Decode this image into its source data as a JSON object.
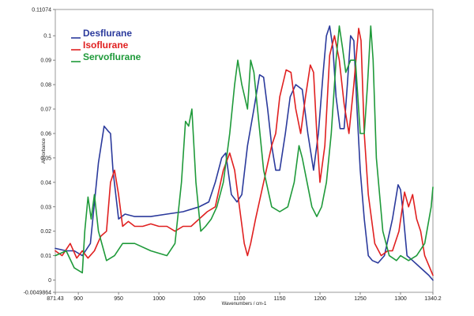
{
  "chart_data": {
    "type": "line",
    "title": "",
    "xlabel": "Wavenumbers / cm-1",
    "ylabel": "Absorbance",
    "xlim": [
      871.43,
      1340.2
    ],
    "ylim": [
      -0.0049864,
      0.11074
    ],
    "x_tick_values": [
      871.43,
      900,
      950,
      1000,
      1050,
      1100,
      1150,
      1200,
      1250,
      1300,
      1340.2
    ],
    "x_tick_labels": [
      "871.43",
      "900",
      "950",
      "1000",
      "1050",
      "1100",
      "1150",
      "1200",
      "1250",
      "1300",
      "1340.2"
    ],
    "y_tick_values": [
      -0.0049864,
      0,
      0.01,
      0.02,
      0.03,
      0.04,
      0.05,
      0.06,
      0.07,
      0.08,
      0.09,
      0.1,
      0.11074
    ],
    "y_tick_labels": [
      "-0.0049864",
      "0",
      "0.01",
      "0.02",
      "0.03",
      "0.04",
      "0.05",
      "0.06",
      "0.07",
      "0.08",
      "0.09",
      "0.1",
      "0.11074"
    ],
    "legend_position": "top-left",
    "series": [
      {
        "name": "Desflurane",
        "color": "#2b3a9c",
        "x": [
          871.43,
          885,
          895,
          905,
          915,
          925,
          932,
          937,
          940,
          943,
          950,
          958,
          970,
          990,
          1010,
          1030,
          1050,
          1062,
          1070,
          1078,
          1083,
          1090,
          1097,
          1103,
          1110,
          1118,
          1125,
          1130,
          1135,
          1140,
          1145,
          1150,
          1157,
          1163,
          1170,
          1178,
          1185,
          1192,
          1198,
          1204,
          1208,
          1212,
          1216,
          1220,
          1225,
          1230,
          1234,
          1238,
          1242,
          1246,
          1250,
          1255,
          1260,
          1265,
          1272,
          1280,
          1290,
          1297,
          1300,
          1303,
          1308,
          1315,
          1325,
          1335,
          1340.2
        ],
        "values": [
          0.013,
          0.012,
          0.012,
          0.01,
          0.015,
          0.048,
          0.063,
          0.061,
          0.06,
          0.045,
          0.025,
          0.027,
          0.026,
          0.026,
          0.027,
          0.028,
          0.03,
          0.032,
          0.04,
          0.05,
          0.052,
          0.035,
          0.032,
          0.035,
          0.055,
          0.07,
          0.084,
          0.083,
          0.07,
          0.055,
          0.045,
          0.045,
          0.06,
          0.075,
          0.08,
          0.078,
          0.06,
          0.045,
          0.06,
          0.085,
          0.1,
          0.104,
          0.095,
          0.075,
          0.062,
          0.062,
          0.08,
          0.1,
          0.098,
          0.07,
          0.045,
          0.025,
          0.01,
          0.008,
          0.007,
          0.01,
          0.025,
          0.039,
          0.037,
          0.028,
          0.01,
          0.008,
          0.005,
          0.002,
          0.0
        ]
      },
      {
        "name": "Isoflurane",
        "color": "#e02020",
        "x": [
          871.43,
          880,
          890,
          898,
          905,
          912,
          920,
          928,
          935,
          940,
          945,
          950,
          955,
          962,
          970,
          980,
          990,
          1000,
          1010,
          1020,
          1030,
          1040,
          1050,
          1060,
          1070,
          1080,
          1088,
          1094,
          1100,
          1106,
          1110,
          1114,
          1120,
          1130,
          1140,
          1145,
          1150,
          1158,
          1164,
          1170,
          1176,
          1182,
          1188,
          1192,
          1196,
          1200,
          1206,
          1212,
          1218,
          1224,
          1230,
          1236,
          1242,
          1248,
          1251,
          1255,
          1260,
          1268,
          1276,
          1284,
          1290,
          1298,
          1305,
          1310,
          1315,
          1320,
          1325,
          1330,
          1340.2
        ],
        "values": [
          0.012,
          0.01,
          0.015,
          0.009,
          0.012,
          0.009,
          0.012,
          0.018,
          0.02,
          0.04,
          0.045,
          0.035,
          0.022,
          0.024,
          0.022,
          0.022,
          0.023,
          0.022,
          0.022,
          0.02,
          0.022,
          0.022,
          0.025,
          0.028,
          0.03,
          0.045,
          0.052,
          0.045,
          0.03,
          0.015,
          0.01,
          0.015,
          0.025,
          0.04,
          0.055,
          0.06,
          0.075,
          0.086,
          0.085,
          0.07,
          0.06,
          0.075,
          0.088,
          0.085,
          0.06,
          0.04,
          0.055,
          0.092,
          0.1,
          0.09,
          0.072,
          0.06,
          0.08,
          0.103,
          0.098,
          0.06,
          0.035,
          0.015,
          0.01,
          0.012,
          0.012,
          0.02,
          0.036,
          0.03,
          0.035,
          0.025,
          0.02,
          0.01,
          0.002
        ]
      },
      {
        "name": "Servoflurane",
        "color": "#1f9a3a",
        "x": [
          871.43,
          885,
          895,
          905,
          908,
          912,
          916,
          920,
          925,
          935,
          945,
          955,
          970,
          990,
          1010,
          1020,
          1028,
          1033,
          1037,
          1041,
          1046,
          1052,
          1058,
          1065,
          1072,
          1080,
          1088,
          1094,
          1098,
          1103,
          1110,
          1114,
          1118,
          1124,
          1130,
          1140,
          1150,
          1160,
          1168,
          1174,
          1178,
          1184,
          1190,
          1196,
          1202,
          1208,
          1214,
          1220,
          1224,
          1228,
          1232,
          1238,
          1244,
          1250,
          1255,
          1259,
          1263,
          1266,
          1270,
          1278,
          1286,
          1295,
          1300,
          1310,
          1320,
          1330,
          1338,
          1340.2
        ],
        "values": [
          0.01,
          0.012,
          0.005,
          0.003,
          0.02,
          0.034,
          0.025,
          0.035,
          0.02,
          0.008,
          0.01,
          0.015,
          0.015,
          0.012,
          0.01,
          0.015,
          0.04,
          0.065,
          0.063,
          0.07,
          0.04,
          0.02,
          0.022,
          0.025,
          0.03,
          0.04,
          0.06,
          0.08,
          0.09,
          0.08,
          0.07,
          0.09,
          0.085,
          0.065,
          0.045,
          0.03,
          0.028,
          0.03,
          0.04,
          0.055,
          0.05,
          0.04,
          0.03,
          0.026,
          0.03,
          0.04,
          0.06,
          0.09,
          0.104,
          0.095,
          0.085,
          0.09,
          0.09,
          0.06,
          0.06,
          0.08,
          0.104,
          0.09,
          0.05,
          0.02,
          0.01,
          0.008,
          0.01,
          0.008,
          0.01,
          0.015,
          0.03,
          0.038
        ]
      }
    ]
  }
}
